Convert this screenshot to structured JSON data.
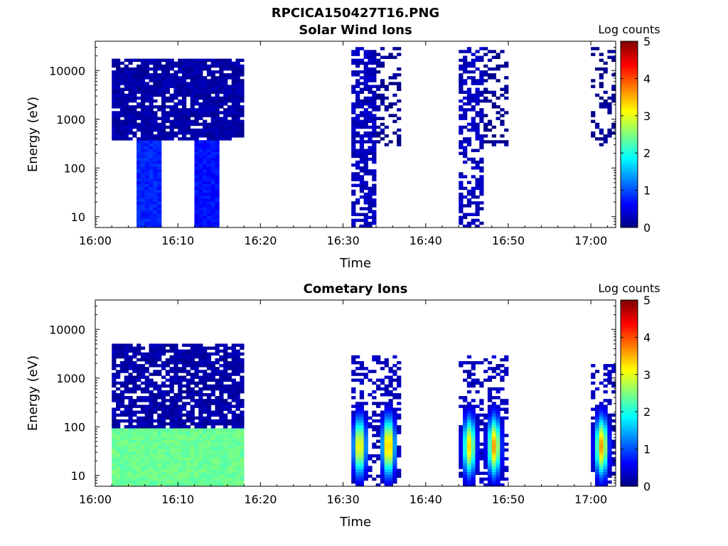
{
  "figure": {
    "title": "RPCICA150427T16.PNG"
  },
  "panels": [
    {
      "title": "Solar Wind Ions",
      "xlabel": "Time",
      "ylabel": "Energy (eV)",
      "colorbar_label": "Log counts",
      "xticks": [
        "16:00",
        "16:10",
        "16:20",
        "16:30",
        "16:40",
        "16:50",
        "17:00"
      ],
      "yticks": [
        "10",
        "100",
        "1000",
        "10000"
      ],
      "cbticks": [
        "0",
        "1",
        "2",
        "3",
        "4",
        "5"
      ]
    },
    {
      "title": "Cometary Ions",
      "xlabel": "Time",
      "ylabel": "Energy (eV)",
      "colorbar_label": "Log counts",
      "xticks": [
        "16:00",
        "16:10",
        "16:20",
        "16:30",
        "16:40",
        "16:50",
        "17:00"
      ],
      "yticks": [
        "10",
        "100",
        "1000",
        "10000"
      ],
      "cbticks": [
        "0",
        "1",
        "2",
        "3",
        "4",
        "5"
      ]
    }
  ],
  "chart_data": [
    {
      "type": "heatmap",
      "title": "Solar Wind Ions",
      "xlabel": "Time",
      "ylabel": "Energy (eV)",
      "xlim_minutes": [
        0,
        63
      ],
      "x_origin": "16:00",
      "ylim_eV": [
        6,
        40000
      ],
      "yscale": "log",
      "clim": [
        0,
        5
      ],
      "colormap": "jet",
      "colorbar_label": "Log counts",
      "blocks": [
        {
          "t_min": 2,
          "t_max": 18,
          "e_lo_eV": 350,
          "e_hi_eV": 18000,
          "log_counts": 0.2,
          "speckle": 0.12
        },
        {
          "t_min": 5,
          "t_max": 8,
          "e_lo_eV": 6,
          "e_hi_eV": 350,
          "log_counts": 0.8
        },
        {
          "t_min": 12,
          "t_max": 15,
          "e_lo_eV": 6,
          "e_hi_eV": 350,
          "log_counts": 0.7
        },
        {
          "t_min": 31,
          "t_max": 34,
          "e_lo_eV": 6,
          "e_hi_eV": 30000,
          "log_counts": 0.3,
          "speckle": 0.35
        },
        {
          "t_min": 34,
          "t_max": 37,
          "e_lo_eV": 300,
          "e_hi_eV": 30000,
          "log_counts": 0.1,
          "speckle": 0.65
        },
        {
          "t_min": 44,
          "t_max": 47,
          "e_lo_eV": 6,
          "e_hi_eV": 30000,
          "log_counts": 0.3,
          "speckle": 0.45
        },
        {
          "t_min": 47,
          "t_max": 50,
          "e_lo_eV": 300,
          "e_hi_eV": 30000,
          "log_counts": 0.1,
          "speckle": 0.65
        },
        {
          "t_min": 60,
          "t_max": 63,
          "e_lo_eV": 300,
          "e_hi_eV": 30000,
          "log_counts": 0.1,
          "speckle": 0.7
        }
      ]
    },
    {
      "type": "heatmap",
      "title": "Cometary Ions",
      "xlabel": "Time",
      "ylabel": "Energy (eV)",
      "xlim_minutes": [
        0,
        63
      ],
      "x_origin": "16:00",
      "ylim_eV": [
        6,
        40000
      ],
      "yscale": "log",
      "clim": [
        0,
        5
      ],
      "colormap": "jet",
      "colorbar_label": "Log counts",
      "blocks": [
        {
          "t_min": 2,
          "t_max": 18,
          "e_lo_eV": 6,
          "e_hi_eV": 5000,
          "log_counts": 0.2,
          "speckle": 0.2
        },
        {
          "t_min": 2,
          "t_max": 18,
          "e_lo_eV": 6,
          "e_hi_eV": 100,
          "log_counts": 2.4
        },
        {
          "t_min": 31,
          "t_max": 37,
          "e_lo_eV": 6,
          "e_hi_eV": 3000,
          "log_counts": 0.3,
          "speckle": 0.6
        },
        {
          "t_min": 44,
          "t_max": 50,
          "e_lo_eV": 6,
          "e_hi_eV": 3000,
          "log_counts": 0.3,
          "speckle": 0.6
        },
        {
          "t_min": 60,
          "t_max": 63,
          "e_lo_eV": 6,
          "e_hi_eV": 2000,
          "log_counts": 0.3,
          "speckle": 0.6
        }
      ],
      "peaks": [
        {
          "t_min": 32.0,
          "e_peak_eV": 40,
          "log_counts_max": 3.3
        },
        {
          "t_min": 35.5,
          "e_peak_eV": 40,
          "log_counts_max": 3.6
        },
        {
          "t_min": 45.3,
          "e_peak_eV": 40,
          "log_counts_max": 3.3
        },
        {
          "t_min": 48.3,
          "e_peak_eV": 40,
          "log_counts_max": 3.6
        },
        {
          "t_min": 61.3,
          "e_peak_eV": 40,
          "log_counts_max": 3.6
        }
      ]
    }
  ]
}
